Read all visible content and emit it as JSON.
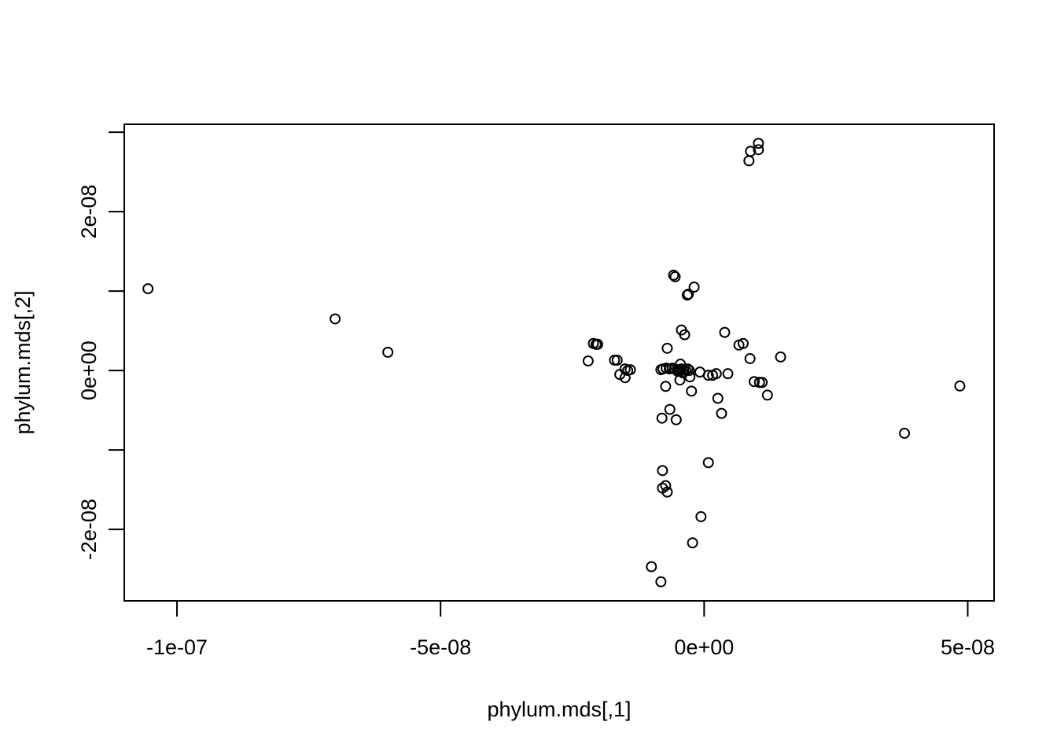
{
  "chart_data": {
    "type": "scatter",
    "title": "",
    "xlabel": "phylum.mds[,1]",
    "ylabel": "phylum.mds[,2]",
    "xlim": [
      -1.1e-07,
      5.5e-08
    ],
    "ylim": [
      -2.9e-08,
      3.1e-08
    ],
    "grid": false,
    "x_ticks": [
      {
        "value": -1e-07,
        "label": "-1e-07"
      },
      {
        "value": -5e-08,
        "label": "-5e-08"
      },
      {
        "value": 0,
        "label": "0e+00"
      },
      {
        "value": 5e-08,
        "label": "5e-08"
      }
    ],
    "y_ticks": [
      {
        "value": -2e-08,
        "label": "-2e-08"
      },
      {
        "value": -1e-08,
        "label": ""
      },
      {
        "value": 0,
        "label": "0e+00"
      },
      {
        "value": 1e-08,
        "label": ""
      },
      {
        "value": 2e-08,
        "label": "2e-08"
      },
      {
        "value": 3e-08,
        "label": ""
      }
    ],
    "x": [
      -1.055e-07,
      -7e-08,
      -6e-08,
      -2.1e-08,
      -2.05e-08,
      -2.02e-08,
      -2.2e-08,
      -1.7e-08,
      -1.65e-08,
      -1.6e-08,
      -1.5e-08,
      -1.45e-08,
      -1.4e-08,
      -1.5e-08,
      -5.8e-09,
      -5.5e-09,
      -1.9e-09,
      -3e-09,
      -3.2e-09,
      1.03e-08,
      8.8e-09,
      1.03e-08,
      8.5e-09,
      -4.3e-09,
      -3.7e-09,
      3.9e-09,
      6.6e-09,
      7.4e-09,
      -7e-09,
      8.7e-09,
      1.45e-08,
      -8.2e-09,
      -7.8e-09,
      -7.2e-09,
      -6.6e-09,
      -6e-09,
      -5.6e-09,
      -5.1e-09,
      -4.7e-09,
      -4.3e-09,
      -3.9e-09,
      -3.5e-09,
      -3.1e-09,
      -2.8e-09,
      -5e-09,
      -4e-09,
      -4.6e-09,
      -2.7e-09,
      -8e-10,
      8e-10,
      1.6e-09,
      2.3e-09,
      4.5e-09,
      -4.5e-09,
      -7.3e-09,
      -2.4e-09,
      9.5e-09,
      1.05e-08,
      1.1e-08,
      1.2e-08,
      2.6e-09,
      3.3e-09,
      -6.5e-09,
      -8e-09,
      -5.3e-09,
      3.8e-08,
      4.85e-08,
      8e-10,
      -7.9e-09,
      -7.9e-09,
      -7.3e-09,
      -7e-09,
      -6e-10,
      -2.2e-09,
      -1e-08,
      -8.2e-09
    ],
    "y": [
      1.03e-08,
      6.5e-09,
      2.3e-09,
      3.4e-09,
      3.3e-09,
      3.3e-09,
      1.2e-09,
      1.3e-09,
      1.3e-09,
      -5e-10,
      2e-10,
      0.0,
      1e-10,
      -9e-10,
      1.2e-08,
      1.18e-08,
      1.05e-08,
      9.6e-09,
      9.5e-09,
      2.86e-08,
      2.76e-08,
      2.78e-08,
      2.64e-08,
      5.1e-09,
      4.5e-09,
      4.8e-09,
      3.2e-09,
      3.4e-09,
      2.8e-09,
      1.5e-09,
      1.7e-09,
      1e-10,
      2e-10,
      3e-10,
      2e-10,
      3e-10,
      2e-10,
      1e-10,
      0.0,
      2e-10,
      1e-10,
      0.0,
      2e-10,
      0.0,
      -1e-10,
      -3e-10,
      -1.2e-09,
      -8e-10,
      -2e-10,
      -6e-10,
      -6e-10,
      -4e-10,
      -4e-10,
      8e-10,
      -2e-09,
      -2.6e-09,
      -1.4e-09,
      -1.5e-09,
      -1.5e-09,
      -3.1e-09,
      -3.5e-09,
      -5.4e-09,
      -4.9e-09,
      -6e-09,
      -6.2e-09,
      -7.9e-09,
      -1.95e-09,
      -1.16e-08,
      -1.26e-08,
      -1.48e-08,
      -1.45e-08,
      -1.53e-08,
      -1.84e-08,
      -2.17e-08,
      -2.47e-08,
      -2.66e-08
    ]
  }
}
